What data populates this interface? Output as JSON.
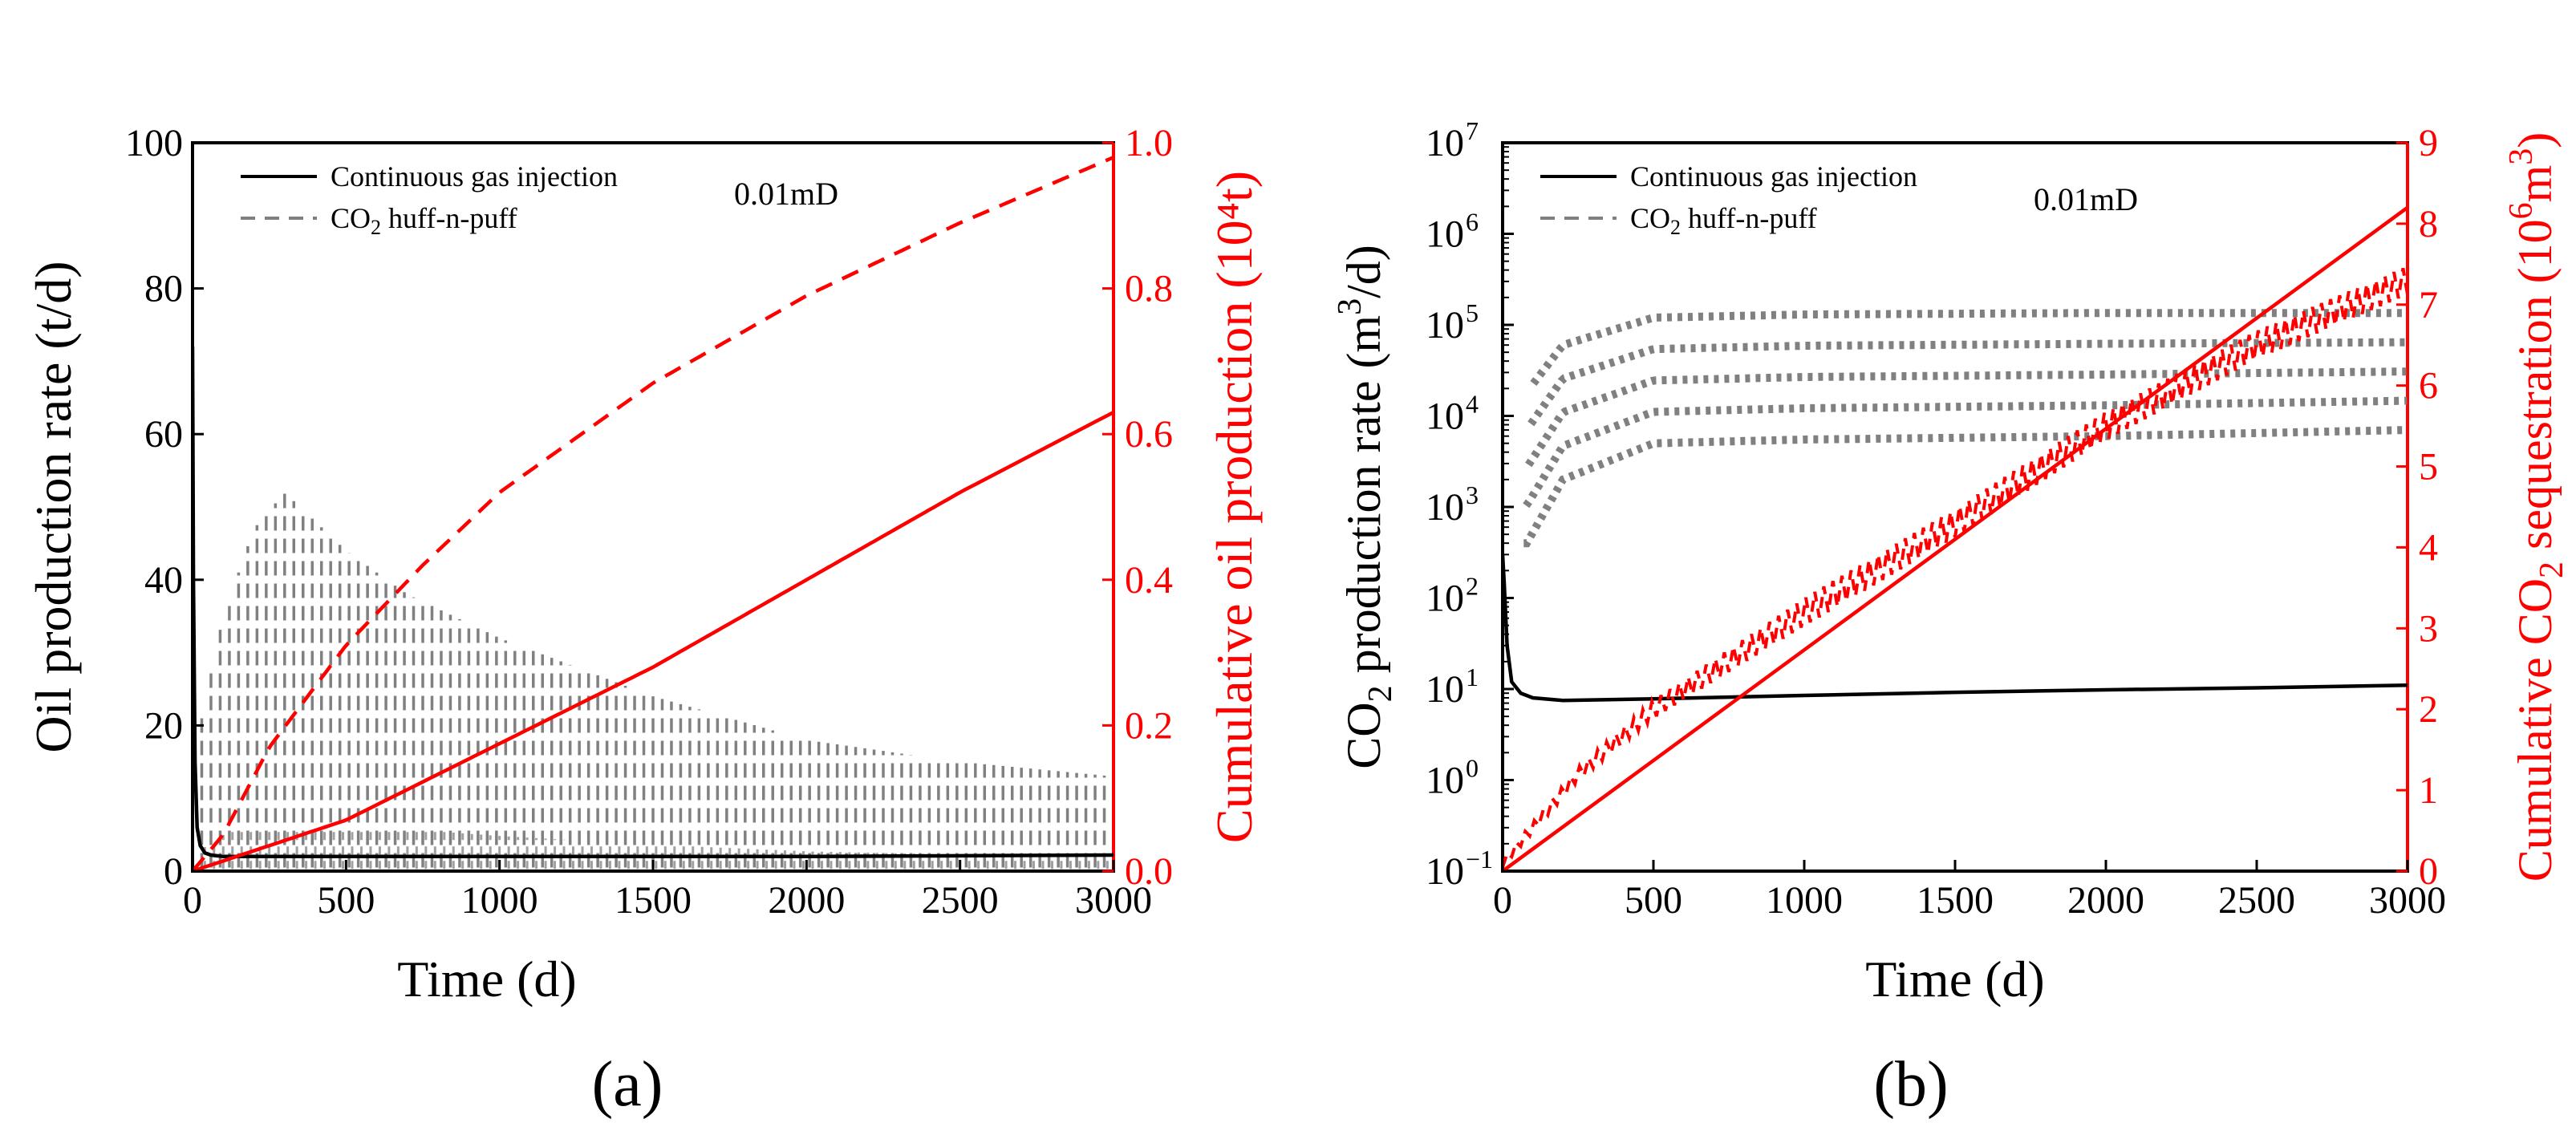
{
  "chart_data": [
    {
      "panel_label": "(a)",
      "type": "line",
      "permeability_label": "0.01mD",
      "xlabel": "Time (d)",
      "xlim": [
        0,
        3000
      ],
      "xticks": [
        0,
        500,
        1000,
        1500,
        2000,
        2500,
        3000
      ],
      "ylabel_left": "Oil production rate (t/d)",
      "ylim_left": [
        0,
        100
      ],
      "yticks_left": [
        0,
        20,
        40,
        60,
        80,
        100
      ],
      "ylabel_right": "Cumulative oil production (10⁴t)",
      "ylim_right": [
        0,
        1.0
      ],
      "yticks_right": [
        0.0,
        0.2,
        0.4,
        0.6,
        0.8,
        1.0
      ],
      "legend": [
        {
          "name": "Continuous gas injection",
          "style": "solid"
        },
        {
          "name": "CO₂ huff-n-puff",
          "style": "dashed"
        }
      ],
      "series": [
        {
          "name": "Continuous gas injection - rate",
          "axis": "left",
          "color": "#000000",
          "style": "solid",
          "x": [
            0,
            3,
            8,
            15,
            25,
            40,
            60,
            100,
            200,
            500,
            1000,
            1500,
            2000,
            2500,
            3000
          ],
          "y": [
            72,
            40,
            15,
            6,
            3.5,
            2.5,
            2.2,
            2.0,
            2.0,
            2.0,
            2.0,
            2.0,
            2.0,
            2.1,
            2.2
          ]
        },
        {
          "name": "CO₂ huff-n-puff - rate envelope",
          "axis": "left",
          "color": "#808080",
          "style": "dashed",
          "kind": "cycles",
          "x": [
            30,
            100,
            200,
            300,
            400,
            500,
            700,
            1000,
            1500,
            2000,
            2500,
            3000
          ],
          "y": [
            22,
            35,
            47,
            52,
            48,
            44,
            38,
            32,
            24,
            18,
            15,
            13
          ],
          "cycle_days": 30,
          "trough": 0.5
        },
        {
          "name": "Continuous gas injection - cumulative",
          "axis": "right",
          "color": "#ff0000",
          "style": "solid",
          "x": [
            0,
            500,
            1000,
            1500,
            2000,
            2500,
            3000
          ],
          "y": [
            0.0,
            0.07,
            0.175,
            0.28,
            0.4,
            0.52,
            0.63
          ]
        },
        {
          "name": "CO₂ huff-n-puff - cumulative",
          "axis": "right",
          "color": "#ff0000",
          "style": "dashed",
          "x": [
            0,
            100,
            250,
            500,
            750,
            1000,
            1500,
            2000,
            2500,
            3000
          ],
          "y": [
            0.0,
            0.05,
            0.17,
            0.31,
            0.42,
            0.52,
            0.67,
            0.79,
            0.89,
            0.98
          ]
        }
      ]
    },
    {
      "panel_label": "(b)",
      "type": "line",
      "permeability_label": "0.01mD",
      "xlabel": "Time (d)",
      "xlim": [
        0,
        3000
      ],
      "xticks": [
        0,
        500,
        1000,
        1500,
        2000,
        2500,
        3000
      ],
      "ylabel_left_prefix": "CO",
      "ylabel_left_sub": "2",
      "ylabel_left_mid": " production rate (m",
      "ylabel_left_sup": "3",
      "ylabel_left_end": "/d)",
      "yscale_left": "log",
      "ylim_left": [
        0.1,
        10000000
      ],
      "yticks_left_exponents": [
        "−1",
        "0",
        "1",
        "2",
        "3",
        "4",
        "5",
        "6",
        "7"
      ],
      "ytick_base": "10",
      "ylabel_right_prefix": "Cumulative CO",
      "ylabel_right_sub": "2",
      "ylabel_right_mid": " sequestration (10",
      "ylabel_right_sup1": "6",
      "ylabel_right_mid2": "m",
      "ylabel_right_sup2": "3",
      "ylabel_right_end": ")",
      "ylim_right": [
        0,
        9
      ],
      "yticks_right": [
        0,
        1,
        2,
        3,
        4,
        5,
        6,
        7,
        8,
        9
      ],
      "legend": [
        {
          "name": "Continuous gas injection",
          "style": "solid"
        },
        {
          "name": "CO₂ huff-n-puff",
          "style": "dashed"
        }
      ],
      "series": [
        {
          "name": "Continuous gas injection - CO₂ rate",
          "axis": "left",
          "color": "#000000",
          "style": "solid",
          "x": [
            0,
            5,
            15,
            30,
            60,
            100,
            200,
            500,
            1000,
            1500,
            2000,
            2500,
            3000
          ],
          "y": [
            300,
            150,
            30,
            12,
            9,
            8,
            7.5,
            7.8,
            8.5,
            9.2,
            9.8,
            10.3,
            11
          ]
        },
        {
          "name": "CO₂ huff-n-puff - CO₂ rate (upper band)",
          "axis": "left",
          "color": "#808080",
          "style": "dashed",
          "kind": "bands",
          "x": [
            60,
            200,
            500,
            1000,
            2000,
            3000
          ],
          "y": [
            15000,
            60000,
            120000,
            130000,
            135000,
            135000
          ]
        },
        {
          "name": "CO₂ huff-n-puff - CO₂ rate (lower band)",
          "axis": "left",
          "color": "#808080",
          "style": "dashed",
          "kind": "bands",
          "x": [
            80,
            200,
            500,
            1000,
            2000,
            3000
          ],
          "y": [
            400,
            2000,
            5000,
            5500,
            6000,
            7000
          ]
        },
        {
          "name": "Continuous gas injection - cumulative CO₂",
          "axis": "right",
          "color": "#ff0000",
          "style": "solid",
          "x": [
            0,
            3000
          ],
          "y": [
            0,
            8.2
          ]
        },
        {
          "name": "CO₂ huff-n-puff - cumulative CO₂",
          "axis": "right",
          "color": "#ff0000",
          "style": "dashed",
          "kind": "sawtooth",
          "x": [
            0,
            250,
            500,
            1000,
            1500,
            2000,
            2500,
            3000
          ],
          "y": [
            0.1,
            1.2,
            2.0,
            3.2,
            4.3,
            5.5,
            6.5,
            7.3
          ],
          "amplitude": 0.35,
          "cycle_days": 30
        }
      ]
    }
  ]
}
